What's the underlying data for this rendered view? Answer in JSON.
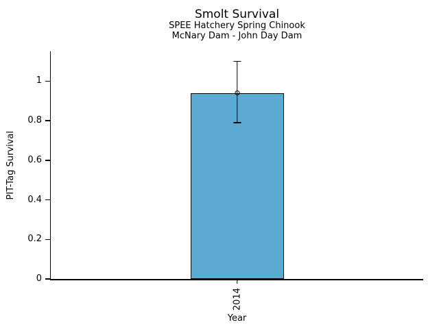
{
  "figure": {
    "background": "#ffffff",
    "text_color": "#000000"
  },
  "chart_data": {
    "type": "bar",
    "title": "Smolt Survival",
    "subtitle": [
      "SPEE Hatchery Spring Chinook",
      "McNary Dam - John Day Dam"
    ],
    "xlabel": "Year",
    "ylabel": "PIT-Tag Survival",
    "categories": [
      "2014"
    ],
    "values": [
      0.94
    ],
    "error_bars": [
      {
        "low": 0.79,
        "high": 1.1
      }
    ],
    "ylim": [
      0,
      1.15
    ],
    "yticks": [
      0,
      0.2,
      0.4,
      0.6,
      0.8,
      1
    ],
    "grid": false,
    "legend": false,
    "bar_color": "#5aaad2",
    "edge_color": "#000000",
    "marker": "open-circle"
  }
}
